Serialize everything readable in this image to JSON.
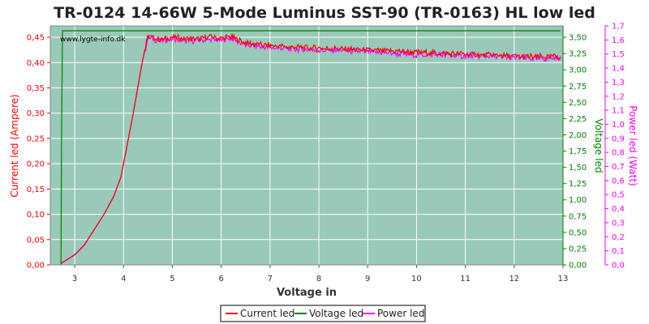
{
  "chart_data": {
    "type": "line",
    "title": "TR-0124 14-66W 5-Mode Luminus SST-90 (TR-0163) HL low led",
    "watermark": "www.lygte-info.dk",
    "xlabel": "Voltage in",
    "ylabel_left": "Current led (Ampere)",
    "ylabel_right1": "Voltage led",
    "ylabel_right2": "Power led (Watt)",
    "xlim": [
      2.5,
      13
    ],
    "ylim_left": [
      0,
      0.4725
    ],
    "ylim_right1": [
      0,
      3.675
    ],
    "ylim_right2": [
      0,
      1.7
    ],
    "xticks": [
      "3",
      "4",
      "5",
      "6",
      "7",
      "8",
      "9",
      "10",
      "11",
      "12",
      "13"
    ],
    "yticks_left": [
      "0,00",
      "0,05",
      "0,10",
      "0,15",
      "0,20",
      "0,25",
      "0,30",
      "0,35",
      "0,40",
      "0,45"
    ],
    "yticks_right1": [
      "0,00",
      "0,25",
      "0,50",
      "0,75",
      "1,00",
      "1,25",
      "1,50",
      "1,75",
      "2,00",
      "2,25",
      "2,50",
      "2,75",
      "3,00",
      "3,25",
      "3,50"
    ],
    "yticks_right2": [
      "0,0",
      "0,1",
      "0,2",
      "0,3",
      "0,4",
      "0,5",
      "0,6",
      "0,7",
      "0,8",
      "0,9",
      "1,0",
      "1,1",
      "1,2",
      "1,3",
      "1,4",
      "1,5",
      "1,6",
      "1,7"
    ],
    "grid": true,
    "legend_position": "bottom-center",
    "colors": {
      "plot_bg": "#99c9b9",
      "current": "#ff0000",
      "voltage": "#008000",
      "power": "#ff00ff",
      "grid": "#ffffff"
    },
    "series": [
      {
        "name": "Current led",
        "axis": "left",
        "x": [
          2.72,
          2.8,
          3.0,
          3.2,
          3.4,
          3.6,
          3.8,
          3.95,
          4.0,
          4.1,
          4.2,
          4.3,
          4.4,
          4.5,
          4.75,
          5.0,
          5.25,
          5.5,
          5.75,
          6.0,
          6.2,
          6.5,
          7.0,
          7.5,
          8.0,
          8.5,
          9.0,
          9.5,
          10.0,
          10.5,
          11.0,
          11.5,
          12.0,
          12.5,
          12.95
        ],
        "values": [
          0.003,
          0.008,
          0.02,
          0.04,
          0.07,
          0.1,
          0.135,
          0.175,
          0.2,
          0.25,
          0.3,
          0.355,
          0.41,
          0.453,
          0.447,
          0.451,
          0.449,
          0.448,
          0.452,
          0.449,
          0.453,
          0.44,
          0.435,
          0.432,
          0.43,
          0.428,
          0.426,
          0.424,
          0.422,
          0.42,
          0.418,
          0.416,
          0.414,
          0.413,
          0.413
        ]
      },
      {
        "name": "Voltage led",
        "axis": "right1",
        "x": [
          2.72,
          2.73,
          2.75,
          3.0,
          4.0,
          5.0,
          6.0,
          7.0,
          8.0,
          9.0,
          10.0,
          11.0,
          12.0,
          12.95
        ],
        "values": [
          0.0,
          1.8,
          3.6,
          3.6,
          3.6,
          3.6,
          3.6,
          3.6,
          3.6,
          3.6,
          3.6,
          3.6,
          3.6,
          3.6
        ]
      },
      {
        "name": "Power led",
        "axis": "right2",
        "x": [
          2.72,
          2.8,
          3.0,
          3.2,
          3.4,
          3.6,
          3.8,
          3.95,
          4.0,
          4.1,
          4.2,
          4.3,
          4.4,
          4.5,
          4.75,
          5.0,
          5.25,
          5.5,
          5.75,
          6.0,
          6.2,
          6.5,
          7.0,
          7.5,
          8.0,
          8.5,
          9.0,
          9.5,
          10.0,
          10.5,
          11.0,
          11.5,
          12.0,
          12.5,
          12.95
        ],
        "values": [
          0.01,
          0.028,
          0.07,
          0.14,
          0.25,
          0.36,
          0.49,
          0.63,
          0.72,
          0.9,
          1.08,
          1.28,
          1.47,
          1.62,
          1.6,
          1.61,
          1.6,
          1.6,
          1.61,
          1.6,
          1.62,
          1.57,
          1.55,
          1.54,
          1.53,
          1.53,
          1.52,
          1.51,
          1.5,
          1.5,
          1.49,
          1.49,
          1.48,
          1.47,
          1.48
        ]
      }
    ]
  }
}
